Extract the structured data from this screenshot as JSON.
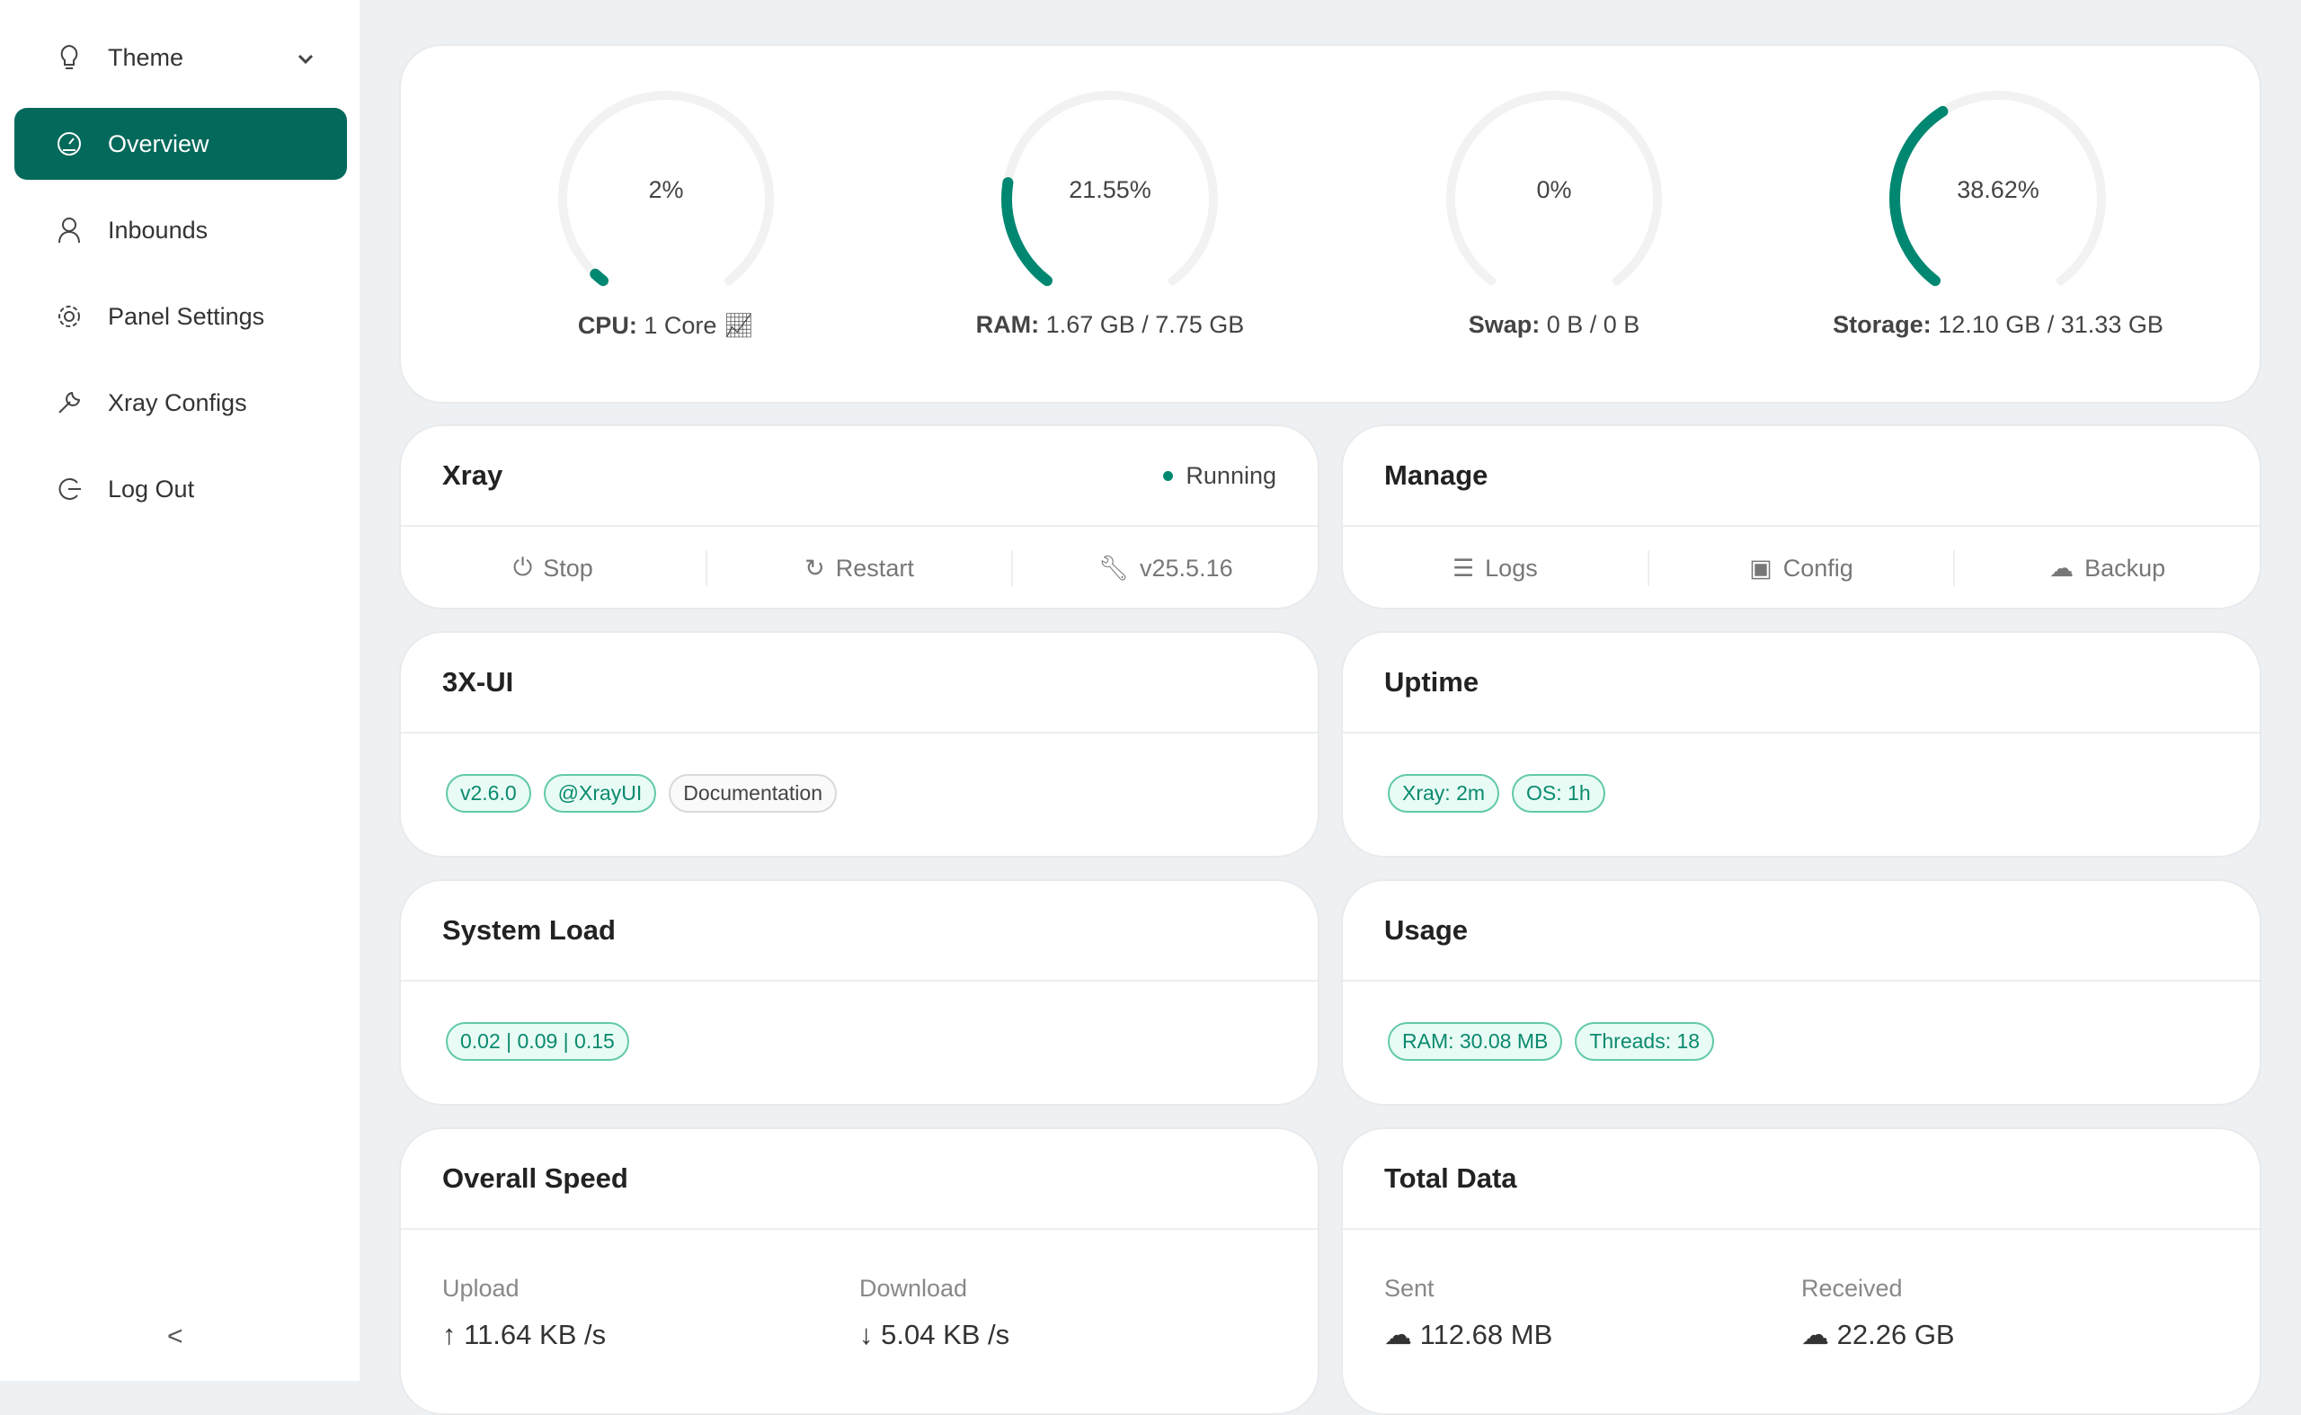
{
  "sidebar": {
    "theme": "Theme",
    "items": [
      {
        "label": "Overview",
        "icon": "dashboard-icon",
        "active": true
      },
      {
        "label": "Inbounds",
        "icon": "user-icon"
      },
      {
        "label": "Panel Settings",
        "icon": "gear-icon"
      },
      {
        "label": "Xray Configs",
        "icon": "wrench-icon"
      },
      {
        "label": "Log Out",
        "icon": "logout-icon"
      }
    ],
    "collapse": "<"
  },
  "accent": "#008771",
  "gauges": [
    {
      "value": "2%",
      "percent": 2,
      "label": "CPU:",
      "detail": "1 Core"
    },
    {
      "value": "21.55%",
      "percent": 21.55,
      "label": "RAM:",
      "detail": "1.67 GB / 7.75 GB"
    },
    {
      "value": "0%",
      "percent": 0,
      "label": "Swap:",
      "detail": "0 B / 0 B"
    },
    {
      "value": "38.62%",
      "percent": 38.62,
      "label": "Storage:",
      "detail": "12.10 GB / 31.33 GB"
    }
  ],
  "xray": {
    "title": "Xray",
    "status": "Running",
    "stop": "Stop",
    "restart": "Restart",
    "version": "v25.5.16"
  },
  "manage": {
    "title": "Manage",
    "logs": "Logs",
    "config": "Config",
    "backup": "Backup"
  },
  "panel": {
    "title": "3X-UI",
    "tags": [
      "v2.6.0",
      "@XrayUI",
      "Documentation"
    ]
  },
  "uptime": {
    "title": "Uptime",
    "tags": [
      "Xray: 2m",
      "OS: 1h"
    ]
  },
  "load": {
    "title": "System Load",
    "value": "0.02 | 0.09 | 0.15"
  },
  "usage": {
    "title": "Usage",
    "ram": "RAM: 30.08 MB",
    "threads": "Threads: 18"
  },
  "speed": {
    "title": "Overall Speed",
    "upload_label": "Upload",
    "upload": "11.64 KB /s",
    "download_label": "Download",
    "download": "5.04 KB /s"
  },
  "total": {
    "title": "Total Data",
    "sent_label": "Sent",
    "sent": "112.68 MB",
    "received_label": "Received",
    "received": "22.26 GB"
  }
}
